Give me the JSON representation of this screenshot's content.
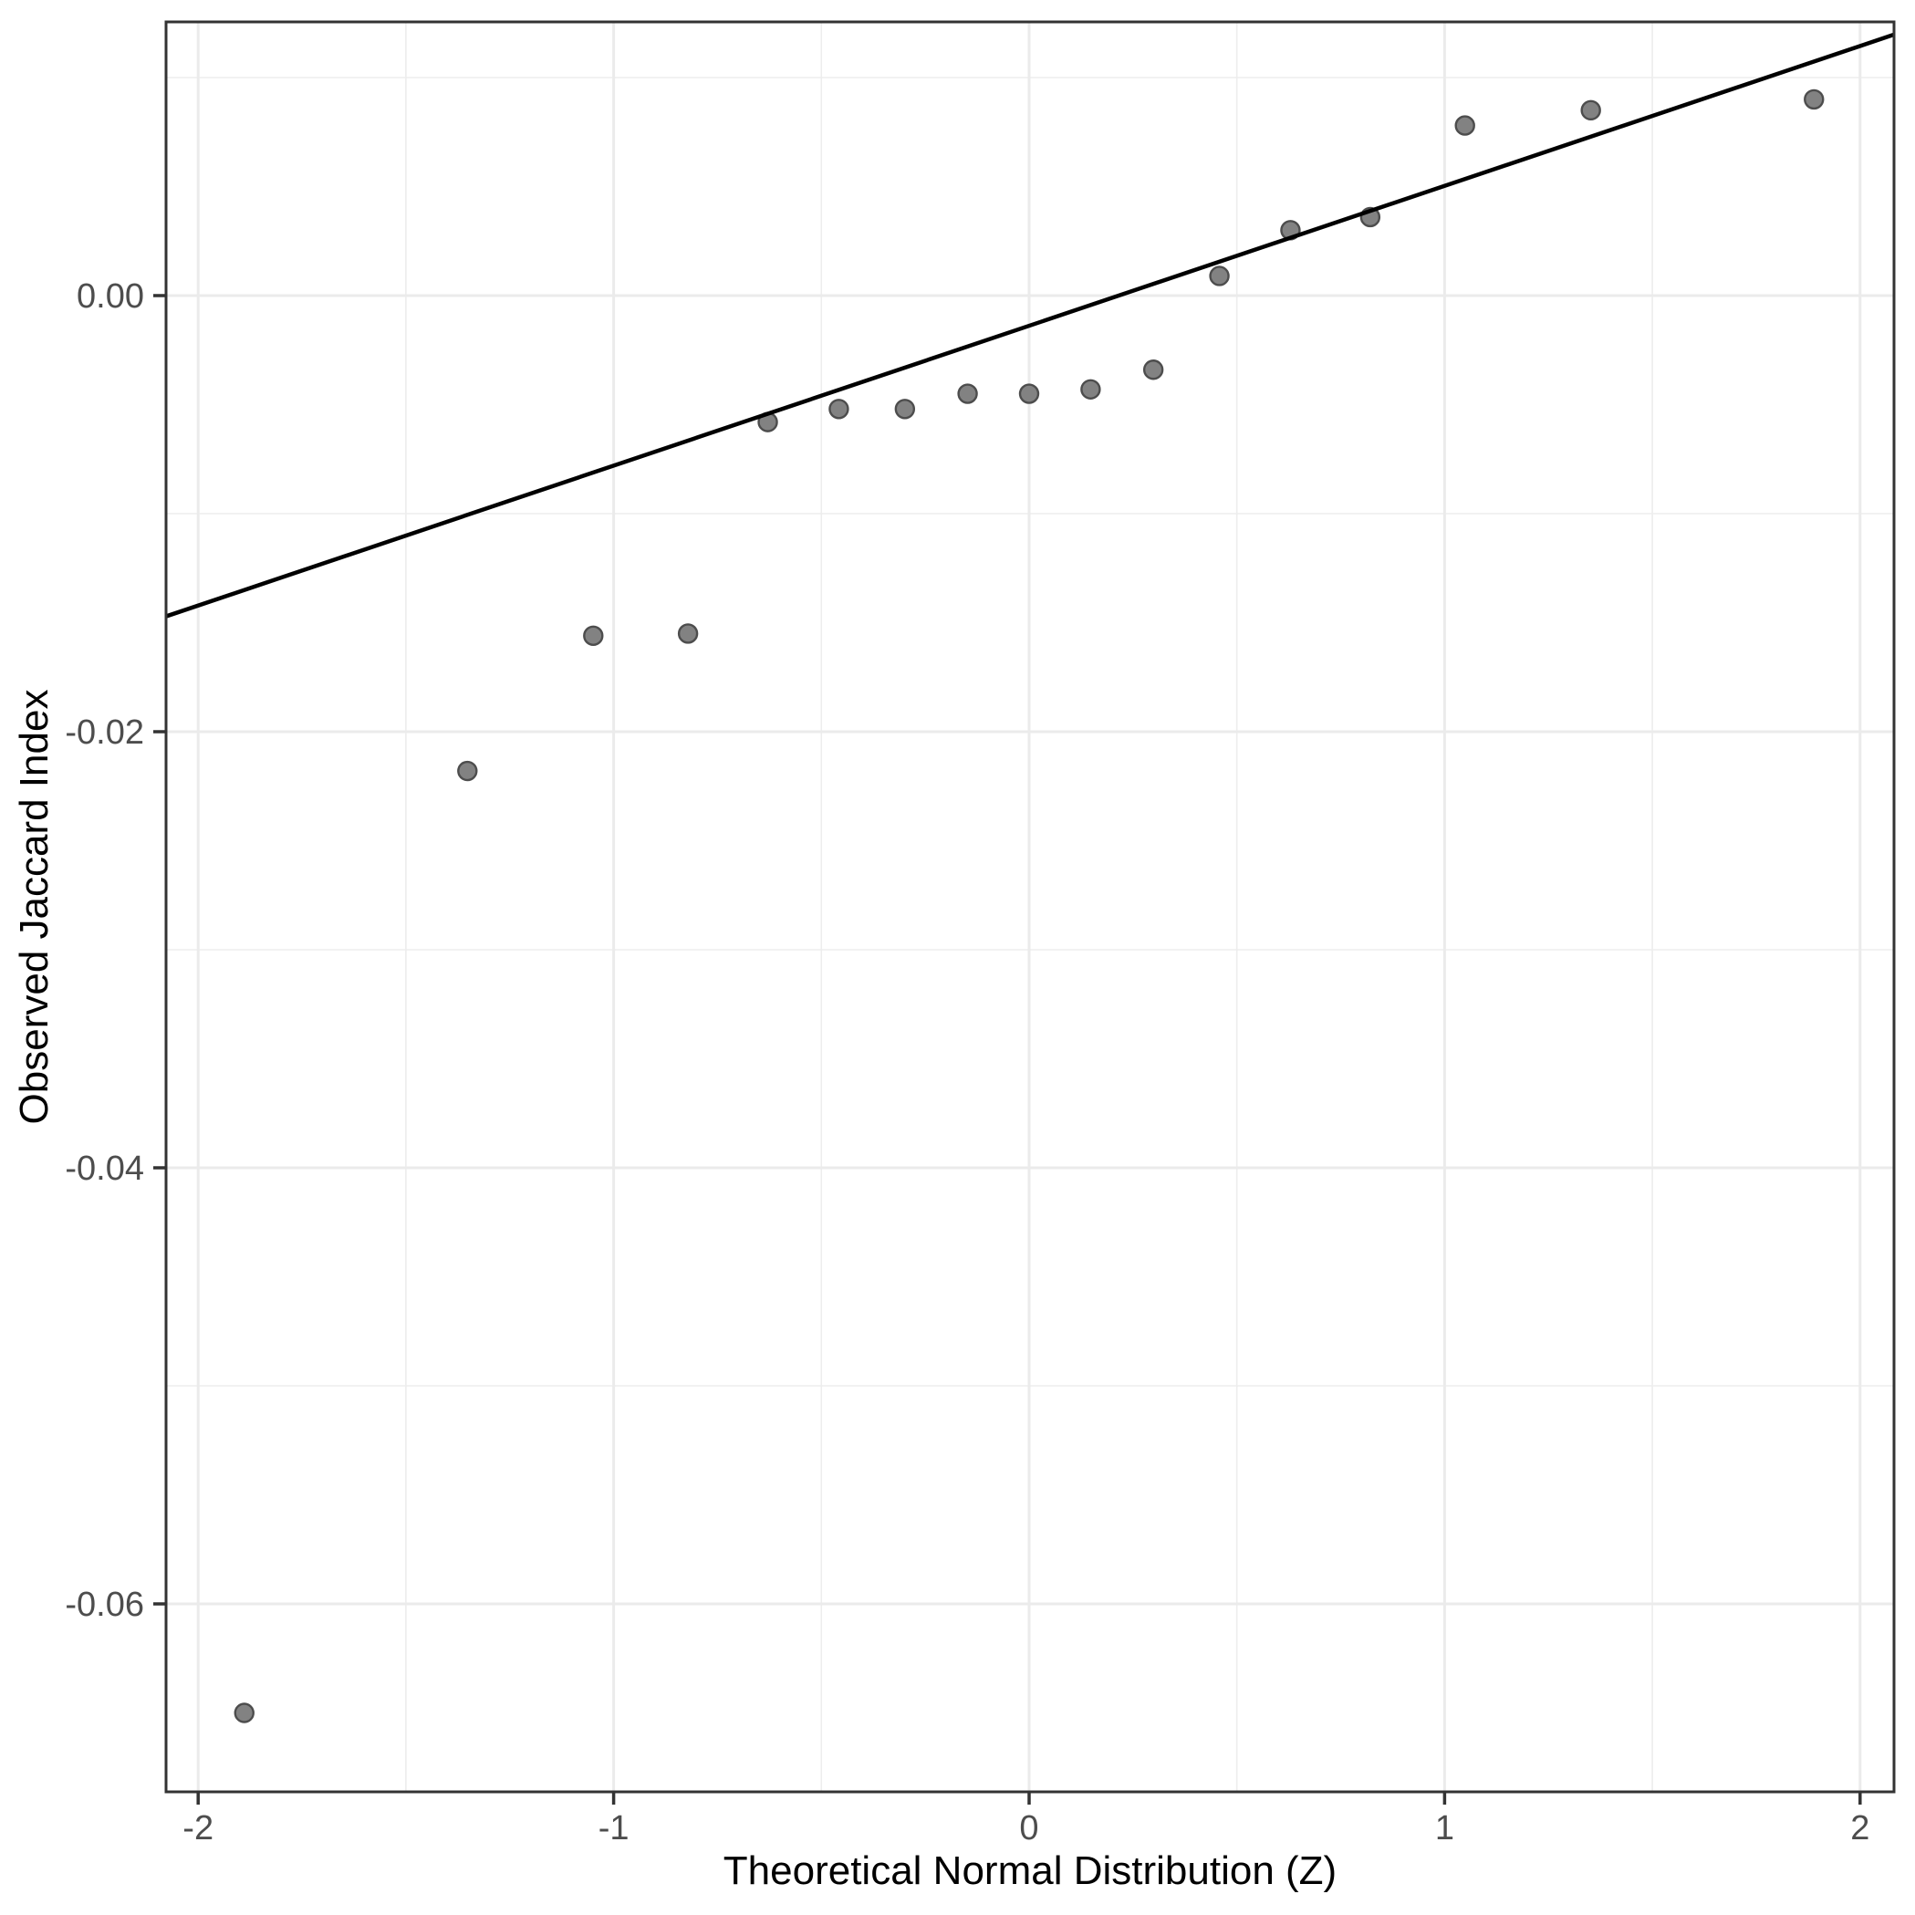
{
  "chart_data": {
    "type": "scatter",
    "title": "",
    "xlabel": "Theoretical Normal Distribution (Z)",
    "ylabel": "Observed Jaccard Index",
    "legend": "none",
    "grid": "on",
    "xlim": [
      -2.0773,
      2.0817
    ],
    "ylim": [
      -0.068619,
      0.012552
    ],
    "x_major_ticks": [
      -2,
      -1,
      0,
      1,
      2
    ],
    "x_tick_labels": [
      "-2",
      "-1",
      "0",
      "1",
      "2"
    ],
    "x_minor_ticks": [
      -1.5,
      -0.5,
      0.5,
      1.5
    ],
    "y_major_ticks": [
      0,
      -0.02,
      -0.04,
      -0.06
    ],
    "y_tick_labels": [
      "0.00",
      "-0.02",
      "-0.04",
      "-0.06"
    ],
    "y_minor_ticks": [
      0.01,
      -0.01,
      -0.03,
      -0.05
    ],
    "series": [
      {
        "name": "sample-quantiles",
        "marker": "circle",
        "points": [
          {
            "x": -1.889,
            "y": -0.065
          },
          {
            "x": -1.352,
            "y": -0.0218
          },
          {
            "x": -1.049,
            "y": -0.0156
          },
          {
            "x": -0.821,
            "y": -0.0155
          },
          {
            "x": -0.629,
            "y": -0.0058
          },
          {
            "x": -0.458,
            "y": -0.0052
          },
          {
            "x": -0.299,
            "y": -0.0052
          },
          {
            "x": -0.148,
            "y": -0.0045
          },
          {
            "x": 0.0,
            "y": -0.0045
          },
          {
            "x": 0.148,
            "y": -0.0043
          },
          {
            "x": 0.299,
            "y": -0.0034
          },
          {
            "x": 0.458,
            "y": 0.0009
          },
          {
            "x": 0.629,
            "y": 0.003
          },
          {
            "x": 0.821,
            "y": 0.0036
          },
          {
            "x": 1.049,
            "y": 0.0078
          },
          {
            "x": 1.352,
            "y": 0.0085
          },
          {
            "x": 1.889,
            "y": 0.009
          }
        ]
      }
    ],
    "reference_line": {
      "x1": -2.0773,
      "y1": -0.01471,
      "x2": 2.0817,
      "y2": 0.01197
    },
    "colors": {
      "background": "#FFFFFF",
      "panel_background": "#FFFFFF",
      "panel_border": "#333333",
      "grid_major": "#EBEBEB",
      "grid_minor": "#EDEDED",
      "tick_mark": "#333333",
      "tick_label": "#4D4D4D",
      "axis_title": "#000000",
      "point_fill": "#828282",
      "point_stroke": "#4D4D4D",
      "reference_line": "#000000"
    }
  }
}
